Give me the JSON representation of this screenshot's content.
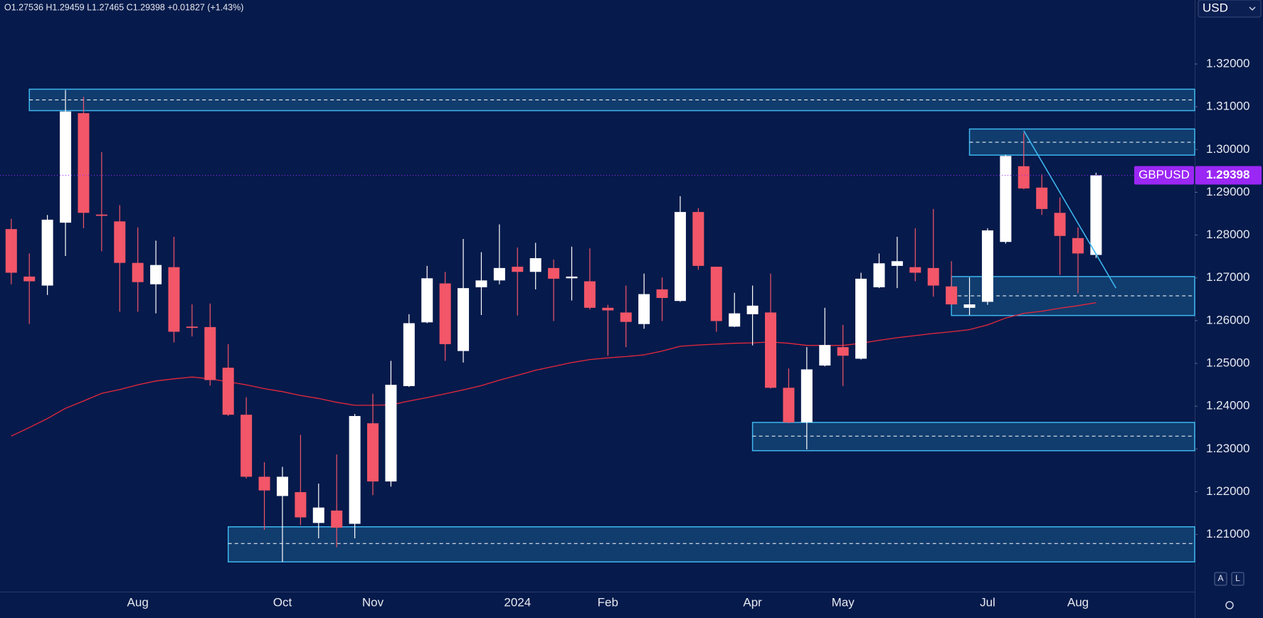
{
  "chart_data": {
    "type": "candlestick",
    "header": "O1.27536 H1.29459 L1.27465 C1.29398 +0.01827 (+1.43%)",
    "symbol": "GBPUSD",
    "currency": "USD",
    "scale_buttons": [
      "A",
      "L"
    ],
    "categories": [
      null,
      null,
      null,
      null,
      null,
      null,
      null,
      "Aug",
      null,
      null,
      null,
      null,
      null,
      null,
      null,
      "Oct",
      null,
      null,
      null,
      null,
      "Nov",
      null,
      null,
      null,
      null,
      null,
      null,
      null,
      "2024",
      null,
      null,
      null,
      null,
      "Feb",
      null,
      null,
      null,
      null,
      null,
      null,
      null,
      "Apr",
      null,
      null,
      null,
      null,
      "May",
      null,
      null,
      null,
      null,
      null,
      null,
      null,
      "Jul",
      null,
      null,
      null,
      null,
      "Aug",
      null
    ],
    "open": [
      1.2814,
      1.2703,
      1.2682,
      1.2829,
      1.3085,
      1.2848,
      1.2832,
      1.2735,
      1.2685,
      1.2725,
      1.2586,
      1.2585,
      1.249,
      1.238,
      1.2235,
      1.219,
      1.2199,
      1.2127,
      1.2156,
      1.2125,
      1.236,
      1.2224,
      1.2447,
      1.2596,
      1.2687,
      1.2529,
      1.2678,
      1.2694,
      1.2726,
      1.2714,
      1.2723,
      1.2699,
      1.2692,
      1.263,
      1.2619,
      1.2592,
      1.2673,
      1.2646,
      1.2854,
      1.2726,
      1.2586,
      1.2615,
      1.2619,
      1.2443,
      1.2362,
      1.2495,
      1.2538,
      1.2511,
      1.2678,
      1.2728,
      1.2725,
      1.2723,
      1.268,
      1.263,
      1.2644,
      1.2784,
      1.2961,
      1.2911,
      1.2852,
      1.2793,
      1.27536
    ],
    "high": [
      1.2838,
      1.2757,
      1.2847,
      1.3139,
      1.3123,
      1.2994,
      1.287,
      1.2818,
      1.2787,
      1.2796,
      1.2638,
      1.264,
      1.2545,
      1.2421,
      1.2269,
      1.2258,
      1.2333,
      1.2219,
      1.2287,
      1.2382,
      1.2429,
      1.2506,
      1.2615,
      1.2728,
      1.2714,
      1.2791,
      1.276,
      1.2825,
      1.2771,
      1.2782,
      1.2743,
      1.2773,
      1.2769,
      1.2637,
      1.2682,
      1.271,
      1.2701,
      1.2891,
      1.2863,
      1.2726,
      1.2665,
      1.2682,
      1.271,
      1.2488,
      1.2538,
      1.263,
      1.259,
      1.2712,
      1.2757,
      1.2796,
      1.2816,
      1.2861,
      1.2739,
      1.2701,
      1.2816,
      1.2988,
      1.3039,
      1.2942,
      1.2888,
      1.2818,
      1.29459
    ],
    "low": [
      1.2685,
      1.2592,
      1.266,
      1.2751,
      1.2816,
      1.2762,
      1.2621,
      1.2621,
      1.2617,
      1.2549,
      1.2563,
      1.2448,
      1.2377,
      1.2231,
      1.2111,
      1.2036,
      1.2122,
      1.2091,
      1.207,
      1.2091,
      1.2192,
      1.2212,
      1.2445,
      1.2594,
      1.2506,
      1.2502,
      1.2613,
      1.2685,
      1.2612,
      1.2673,
      1.2599,
      1.2647,
      1.2626,
      1.2518,
      1.2538,
      1.2581,
      1.2599,
      1.2644,
      1.2719,
      1.2574,
      1.2585,
      1.2542,
      1.2441,
      1.236,
      1.2299,
      1.2493,
      1.2447,
      1.2509,
      1.2676,
      1.2676,
      1.2692,
      1.2656,
      1.2637,
      1.2613,
      1.2637,
      1.278,
      1.2907,
      1.2847,
      1.2707,
      1.2664,
      1.27465
    ],
    "close": [
      1.2712,
      1.2692,
      1.2836,
      1.3089,
      1.2852,
      1.2845,
      1.2735,
      1.269,
      1.273,
      1.2574,
      1.2583,
      1.2461,
      1.238,
      1.2235,
      1.2203,
      1.2235,
      1.214,
      1.2163,
      1.2116,
      1.2377,
      1.2224,
      1.245,
      1.2594,
      1.2699,
      1.2545,
      1.2676,
      1.2694,
      1.2723,
      1.2714,
      1.2746,
      1.2698,
      1.2703,
      1.263,
      1.2624,
      1.2597,
      1.2662,
      1.2653,
      1.2854,
      1.2728,
      1.2599,
      1.2617,
      1.2635,
      1.2443,
      1.2362,
      1.2486,
      1.2543,
      1.2518,
      1.2698,
      1.2734,
      1.2739,
      1.2712,
      1.2682,
      1.2638,
      1.2638,
      1.2811,
      1.2985,
      1.2909,
      1.2861,
      1.2798,
      1.2757,
      1.29398
    ],
    "up_color": "#ffffff",
    "down_color": "#f25668",
    "moving_average": {
      "color": "#e8283c",
      "values": [
        1.233,
        1.235,
        1.2371,
        1.2395,
        1.2412,
        1.243,
        1.2439,
        1.245,
        1.2459,
        1.2464,
        1.2468,
        1.2464,
        1.2457,
        1.245,
        1.2441,
        1.2434,
        1.2425,
        1.2418,
        1.2409,
        1.2402,
        1.2402,
        1.2403,
        1.2412,
        1.242,
        1.2429,
        1.2438,
        1.2448,
        1.2461,
        1.2472,
        1.2484,
        1.2493,
        1.2502,
        1.2509,
        1.2513,
        1.2516,
        1.252,
        1.2529,
        1.254,
        1.2543,
        1.2545,
        1.2547,
        1.2548,
        1.255,
        1.2547,
        1.2542,
        1.2542,
        1.2542,
        1.2547,
        1.2554,
        1.256,
        1.2565,
        1.257,
        1.2574,
        1.2579,
        1.259,
        1.2606,
        1.2617,
        1.2622,
        1.2629,
        1.2635,
        1.2642
      ]
    },
    "zones": [
      {
        "start": 1,
        "top": 1.3141,
        "bottom": 1.3091,
        "mid": 1.3116
      },
      {
        "start": 53,
        "top": 1.3048,
        "bottom": 1.2987,
        "mid": 1.3017
      },
      {
        "start": 52,
        "top": 1.2703,
        "bottom": 1.2612,
        "mid": 1.2658
      },
      {
        "start": 41,
        "top": 1.2362,
        "bottom": 1.2296,
        "mid": 1.233
      },
      {
        "start": 12,
        "top": 1.2118,
        "bottom": 1.2036,
        "mid": 1.2079
      }
    ],
    "zone_color": "#3db6ee",
    "trendline": {
      "x": [
        56,
        61.1
      ],
      "y": [
        1.3044,
        1.2676
      ],
      "color": "#3db6ee"
    },
    "price_tag_color": "#9b27f5",
    "ylim": [
      1.19663,
      1.33496
    ],
    "yticks": [
      {
        "value": 1.21,
        "label": "1.21000"
      },
      {
        "value": 1.22,
        "label": "1.22000"
      },
      {
        "value": 1.23,
        "label": "1.23000"
      },
      {
        "value": 1.24,
        "label": "1.24000"
      },
      {
        "value": 1.25,
        "label": "1.25000"
      },
      {
        "value": 1.26,
        "label": "1.26000"
      },
      {
        "value": 1.27,
        "label": "1.27000"
      },
      {
        "value": 1.28,
        "label": "1.28000"
      },
      {
        "value": 1.29,
        "label": "1.29000"
      },
      {
        "value": 1.3,
        "label": "1.30000"
      },
      {
        "value": 1.31,
        "label": "1.31000"
      },
      {
        "value": 1.32,
        "label": "1.32000"
      }
    ],
    "grid": false
  }
}
